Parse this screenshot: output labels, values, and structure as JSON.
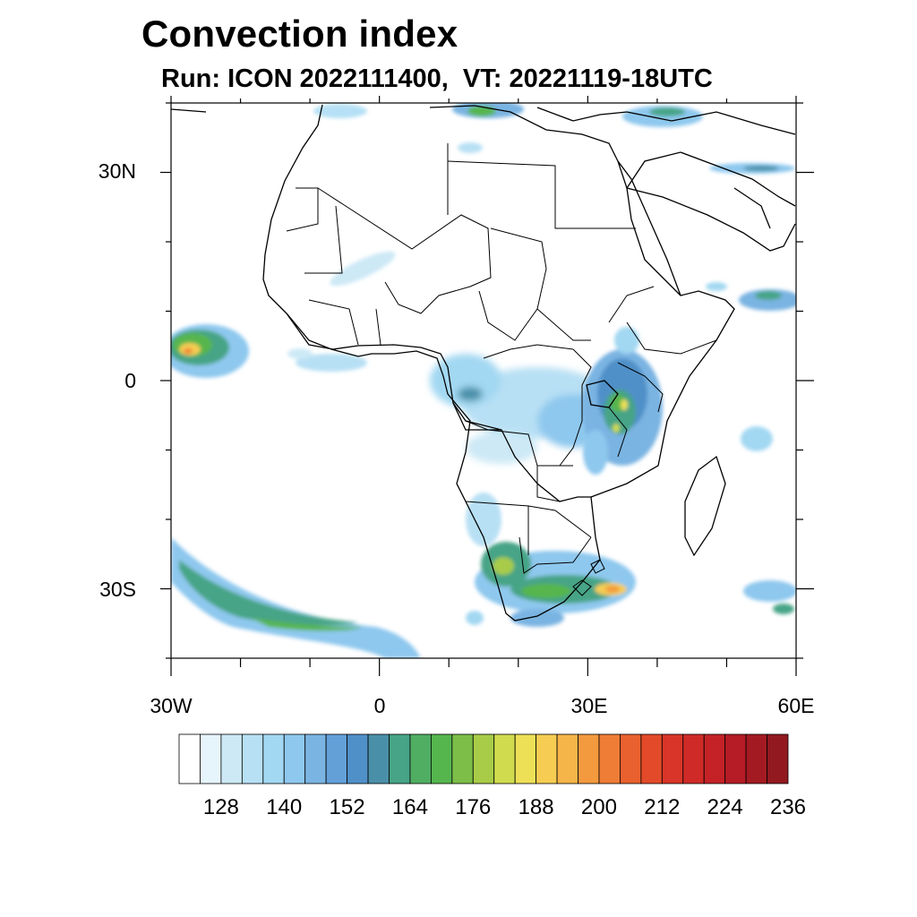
{
  "title": "Convection index",
  "subtitle": "Run: ICON 2022111400,  VT: 20221119-18UTC",
  "map": {
    "region": "Africa",
    "projection": "cylindrical-equidistant",
    "lon_range": [
      -30,
      60
    ],
    "lat_range": [
      -40,
      40
    ],
    "lat_tick_labels": [
      {
        "lat": 30,
        "label": "30N"
      },
      {
        "lat": 0,
        "label": "0"
      },
      {
        "lat": -30,
        "label": "30S"
      }
    ],
    "lon_tick_labels": [
      {
        "lon": -30,
        "label": "30W"
      },
      {
        "lon": 0,
        "label": "0"
      },
      {
        "lon": 30,
        "label": "30E"
      },
      {
        "lon": 60,
        "label": "60E"
      }
    ],
    "minor_lat_ticks": [
      40,
      20,
      10,
      -10,
      -20,
      -40
    ],
    "minor_lon_ticks": [
      -20,
      -10,
      10,
      20,
      40,
      50
    ]
  },
  "colorbar": {
    "levels": [
      122,
      125,
      128,
      131,
      134,
      137,
      140,
      143,
      146,
      149,
      152,
      155,
      158,
      161,
      164,
      167,
      170,
      173,
      176,
      179,
      182,
      185,
      188,
      191,
      194,
      197,
      200,
      203,
      206,
      209,
      212,
      215,
      218,
      221,
      224,
      227,
      230,
      233,
      236,
      239
    ],
    "labels": [
      "128",
      "140",
      "152",
      "164",
      "176",
      "188",
      "200",
      "212",
      "224",
      "236"
    ],
    "colors": [
      "#ffffff",
      "#e6f4fb",
      "#cde9f6",
      "#b8e0f4",
      "#a3d8f2",
      "#8ec8ee",
      "#7ab4e2",
      "#63a0d8",
      "#5090c8",
      "#4a8fa8",
      "#47a486",
      "#4fae62",
      "#56b64e",
      "#7cbe48",
      "#a8cc48",
      "#d0dc4e",
      "#ede056",
      "#f6cd52",
      "#f5b548",
      "#f39a3e",
      "#ef7d36",
      "#e9612e",
      "#e24a2a",
      "#d93528",
      "#cf2a28",
      "#c42227",
      "#b51c25",
      "#a41a22",
      "#921920"
    ]
  },
  "convection_regions": [
    {
      "name": "Atlantic cell near 5N",
      "intensity": "high"
    },
    {
      "name": "East African highlands",
      "intensity": "moderate-high"
    },
    {
      "name": "Congo basin",
      "intensity": "low-moderate"
    },
    {
      "name": "South Africa",
      "intensity": "high"
    },
    {
      "name": "South Atlantic band",
      "intensity": "moderate"
    },
    {
      "name": "Arabian Sea",
      "intensity": "moderate"
    },
    {
      "name": "Mediterranean",
      "intensity": "moderate"
    }
  ]
}
